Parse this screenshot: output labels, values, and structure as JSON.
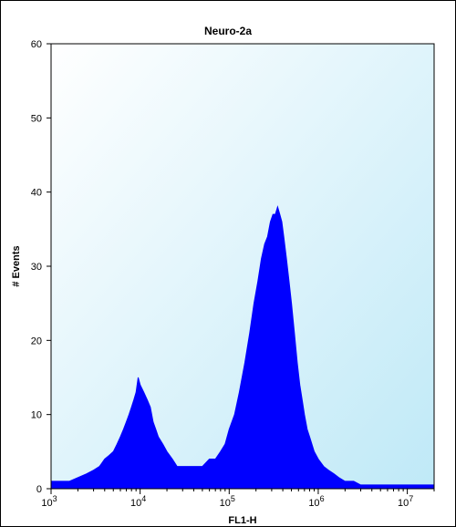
{
  "chart_data": {
    "type": "area",
    "title": "Neuro-2a",
    "xlabel": "FL1-H",
    "ylabel": "# Events",
    "x_scale": "log",
    "xlim": [
      1000,
      20000000
    ],
    "ylim": [
      0,
      60
    ],
    "x_ticks": [
      {
        "value": 1000,
        "base": "10",
        "exp": "3"
      },
      {
        "value": 10000,
        "base": "10",
        "exp": "4"
      },
      {
        "value": 100000,
        "base": "10",
        "exp": "5"
      },
      {
        "value": 1000000,
        "base": "10",
        "exp": "6"
      },
      {
        "value": 10000000,
        "base": "10",
        "exp": "7"
      }
    ],
    "y_ticks": [
      0,
      10,
      20,
      30,
      40,
      50,
      60
    ],
    "grid": false,
    "series": [
      {
        "color": "#0000ff",
        "x": [
          1000,
          1300,
          1600,
          2000,
          2500,
          3000,
          3500,
          4000,
          4500,
          5000,
          5500,
          6000,
          6500,
          7000,
          7500,
          8000,
          8500,
          9000,
          9500,
          10000,
          11000,
          12000,
          13000,
          14000,
          15000,
          16000,
          18000,
          20000,
          23000,
          26000,
          30000,
          35000,
          40000,
          45000,
          50000,
          60000,
          70000,
          80000,
          90000,
          100000,
          115000,
          130000,
          150000,
          170000,
          190000,
          210000,
          230000,
          250000,
          270000,
          290000,
          310000,
          330000,
          350000,
          370000,
          390000,
          410000,
          440000,
          470000,
          500000,
          540000,
          580000,
          620000,
          660000,
          700000,
          750000,
          800000,
          900000,
          1000000,
          1150000,
          1300000,
          1500000,
          1700000,
          2000000,
          2500000,
          3000000,
          4000000,
          5000000,
          7000000,
          10000000,
          15000000,
          20000000
        ],
        "values": [
          1,
          1,
          1,
          1.5,
          2,
          2.5,
          3,
          4,
          4.5,
          5,
          6,
          7,
          8,
          9,
          10,
          11,
          12,
          13,
          15,
          14,
          13,
          12,
          11,
          9,
          8,
          7,
          6,
          5,
          4,
          3,
          3,
          3,
          3,
          3,
          3,
          4,
          4,
          5,
          6,
          8,
          10,
          13,
          17,
          21,
          25,
          28,
          31,
          33,
          34,
          36,
          37,
          37,
          38,
          37,
          36,
          34,
          31,
          28,
          25,
          21,
          17,
          14,
          12,
          10,
          8,
          7,
          5,
          4,
          3,
          2.5,
          2,
          1.5,
          1,
          1,
          0.5,
          0.5,
          0.5,
          0.5,
          0.5,
          0.5,
          0.5
        ]
      }
    ]
  }
}
